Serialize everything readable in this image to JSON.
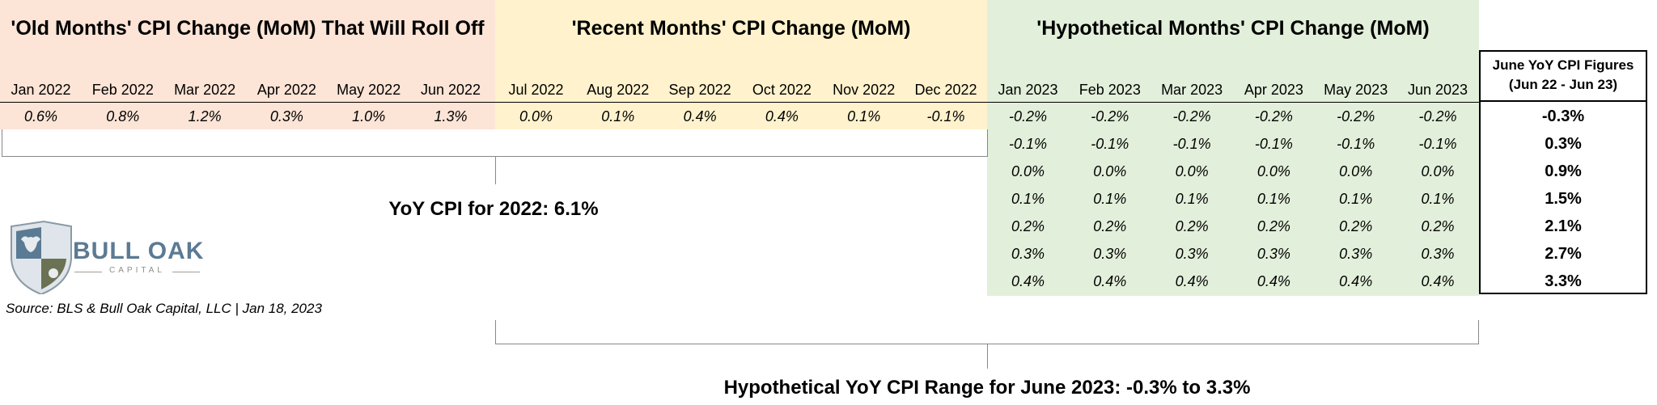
{
  "sections": {
    "old": {
      "title": "'Old Months' CPI Change (MoM) That Will Roll Off",
      "months": [
        "Jan 2022",
        "Feb 2022",
        "Mar 2022",
        "Apr 2022",
        "May 2022",
        "Jun 2022"
      ],
      "values": [
        "0.6%",
        "0.8%",
        "1.2%",
        "0.3%",
        "1.0%",
        "1.3%"
      ],
      "color": "#fce4d6"
    },
    "recent": {
      "title": "'Recent Months' CPI Change (MoM)",
      "months": [
        "Jul 2022",
        "Aug 2022",
        "Sep 2022",
        "Oct 2022",
        "Nov 2022",
        "Dec 2022"
      ],
      "values": [
        "0.0%",
        "0.1%",
        "0.4%",
        "0.4%",
        "0.1%",
        "-0.1%"
      ],
      "color": "#fff2cc"
    },
    "hypothetical": {
      "title": "'Hypothetical Months' CPI Change (MoM)",
      "months": [
        "Jan 2023",
        "Feb 2023",
        "Mar 2023",
        "Apr 2023",
        "May 2023",
        "Jun 2023"
      ],
      "scenarios": [
        "-0.2%",
        "-0.1%",
        "0.0%",
        "0.1%",
        "0.2%",
        "0.3%",
        "0.4%"
      ],
      "color": "#e2efda"
    }
  },
  "yoy_box": {
    "header_line1": "June YoY CPI Figures",
    "header_line2": "(Jun 22 - Jun 23)",
    "values": [
      "-0.3%",
      "0.3%",
      "0.9%",
      "1.5%",
      "2.1%",
      "2.7%",
      "3.3%"
    ]
  },
  "labels": {
    "yoy_2022": "YoY CPI for 2022: 6.1%",
    "range_2023": "Hypothetical YoY CPI Range for June 2023: -0.3% to 3.3%",
    "source": "Source: BLS & Bull Oak Capital, LLC | Jan 18, 2023"
  },
  "logo": {
    "name": "BULL OAK",
    "subtitle": "CAPITAL",
    "color": "#5b7a93"
  }
}
